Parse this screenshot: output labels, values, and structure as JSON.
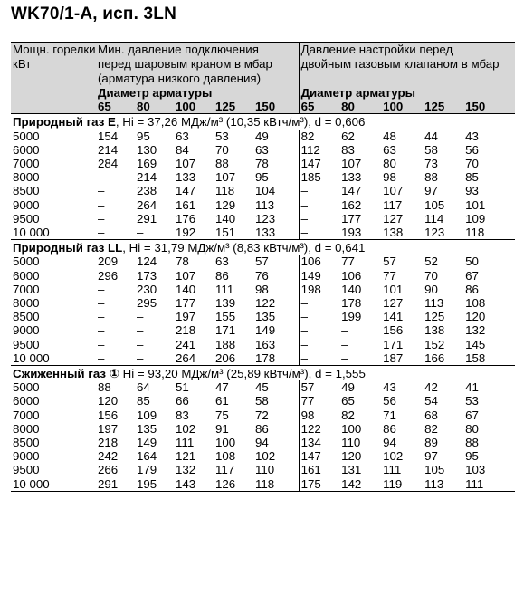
{
  "title": "WK70/1-A, исп. 3LN",
  "header": {
    "col_power": "Мощн. горелки кВт",
    "col_low": "Мин. давление подключения перед шаровым краном в мбар (арматура низкого давления)",
    "col_set": "Давление настройки перед двойным газовым клапаном в мбар",
    "diameter_label": "Диаметр арматуры",
    "diameters": [
      "65",
      "80",
      "100",
      "125",
      "150"
    ]
  },
  "sections": [
    {
      "name": "Природный газ E",
      "params": ", Hi = 37,26 МДж/м³ (10,35 кВтч/м³), d = 0,606",
      "rows": [
        [
          "5000",
          "154",
          "95",
          "63",
          "53",
          "49",
          "82",
          "62",
          "48",
          "44",
          "43"
        ],
        [
          "6000",
          "214",
          "130",
          "84",
          "70",
          "63",
          "112",
          "83",
          "63",
          "58",
          "56"
        ],
        [
          "7000",
          "284",
          "169",
          "107",
          "88",
          "78",
          "147",
          "107",
          "80",
          "73",
          "70"
        ],
        [
          "8000",
          "–",
          "214",
          "133",
          "107",
          "95",
          "185",
          "133",
          "98",
          "88",
          "85"
        ],
        [
          "8500",
          "–",
          "238",
          "147",
          "118",
          "104",
          "–",
          "147",
          "107",
          "97",
          "93"
        ],
        [
          "9000",
          "–",
          "264",
          "161",
          "129",
          "113",
          "–",
          "162",
          "117",
          "105",
          "101"
        ],
        [
          "9500",
          "–",
          "291",
          "176",
          "140",
          "123",
          "–",
          "177",
          "127",
          "114",
          "109"
        ],
        [
          "10 000",
          "–",
          "–",
          "192",
          "151",
          "133",
          "–",
          "193",
          "138",
          "123",
          "118"
        ]
      ]
    },
    {
      "name": "Природный газ LL",
      "params": ", Hi = 31,79 МДж/м³ (8,83 кВтч/м³), d = 0,641",
      "rows": [
        [
          "5000",
          "209",
          "124",
          "78",
          "63",
          "57",
          "106",
          "77",
          "57",
          "52",
          "50"
        ],
        [
          "6000",
          "296",
          "173",
          "107",
          "86",
          "76",
          "149",
          "106",
          "77",
          "70",
          "67"
        ],
        [
          "7000",
          "–",
          "230",
          "140",
          "111",
          "98",
          "198",
          "140",
          "101",
          "90",
          "86"
        ],
        [
          "8000",
          "–",
          "295",
          "177",
          "139",
          "122",
          "–",
          "178",
          "127",
          "113",
          "108"
        ],
        [
          "8500",
          "–",
          "–",
          "197",
          "155",
          "135",
          "–",
          "199",
          "141",
          "125",
          "120"
        ],
        [
          "9000",
          "–",
          "–",
          "218",
          "171",
          "149",
          "–",
          "–",
          "156",
          "138",
          "132"
        ],
        [
          "9500",
          "–",
          "–",
          "241",
          "188",
          "163",
          "–",
          "–",
          "171",
          "152",
          "145"
        ],
        [
          "10 000",
          "–",
          "–",
          "264",
          "206",
          "178",
          "–",
          "–",
          "187",
          "166",
          "158"
        ]
      ]
    },
    {
      "name": "Сжиженный газ ①",
      "params": " Hi = 93,20 МДж/м³ (25,89 кВтч/м³), d = 1,555",
      "rows": [
        [
          "5000",
          "88",
          "64",
          "51",
          "47",
          "45",
          "57",
          "49",
          "43",
          "42",
          "41"
        ],
        [
          "6000",
          "120",
          "85",
          "66",
          "61",
          "58",
          "77",
          "65",
          "56",
          "54",
          "53"
        ],
        [
          "7000",
          "156",
          "109",
          "83",
          "75",
          "72",
          "98",
          "82",
          "71",
          "68",
          "67"
        ],
        [
          "8000",
          "197",
          "135",
          "102",
          "91",
          "86",
          "122",
          "100",
          "86",
          "82",
          "80"
        ],
        [
          "8500",
          "218",
          "149",
          "111",
          "100",
          "94",
          "134",
          "110",
          "94",
          "89",
          "88"
        ],
        [
          "9000",
          "242",
          "164",
          "121",
          "108",
          "102",
          "147",
          "120",
          "102",
          "97",
          "95"
        ],
        [
          "9500",
          "266",
          "179",
          "132",
          "117",
          "110",
          "161",
          "131",
          "111",
          "105",
          "103"
        ],
        [
          "10 000",
          "291",
          "195",
          "143",
          "126",
          "118",
          "175",
          "142",
          "119",
          "113",
          "111"
        ]
      ]
    }
  ]
}
